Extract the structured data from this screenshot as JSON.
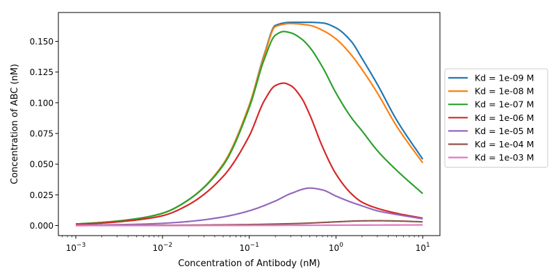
{
  "chart_data": {
    "type": "line",
    "xlabel": "Concentration of Antibody (nM)",
    "ylabel": "Concentration of ABC (nM)",
    "xscale": "log",
    "xlim": [
      0.00063,
      15.8
    ],
    "ylim": [
      -0.0082,
      0.1735
    ],
    "x_ticks": [
      0.001,
      0.01,
      0.1,
      1,
      10
    ],
    "x_tick_labels": [
      {
        "base": "10",
        "exp": "−3"
      },
      {
        "base": "10",
        "exp": "−2"
      },
      {
        "base": "10",
        "exp": "−1"
      },
      {
        "base": "10",
        "exp": "0"
      },
      {
        "base": "10",
        "exp": "1"
      }
    ],
    "y_ticks": [
      0.0,
      0.025,
      0.05,
      0.075,
      0.1,
      0.125,
      0.15
    ],
    "y_tick_labels": [
      "0.000",
      "0.025",
      "0.050",
      "0.075",
      "0.100",
      "0.125",
      "0.150"
    ],
    "grid": false,
    "legend_position": "outside right",
    "series": [
      {
        "name": "Kd = 1e-09 M",
        "color": "#1f77b4",
        "x": [
          0.001,
          0.002,
          0.005,
          0.01,
          0.02,
          0.05,
          0.1,
          0.15,
          0.2,
          0.3,
          0.5,
          0.7,
          1,
          1.5,
          2,
          3,
          5,
          10
        ],
        "y": [
          0.0012,
          0.0025,
          0.0055,
          0.01,
          0.021,
          0.05,
          0.098,
          0.14,
          0.163,
          0.1655,
          0.1655,
          0.165,
          0.161,
          0.15,
          0.136,
          0.115,
          0.086,
          0.054
        ]
      },
      {
        "name": "Kd = 1e-08 M",
        "color": "#ff7f0e",
        "x": [
          0.001,
          0.002,
          0.005,
          0.01,
          0.02,
          0.05,
          0.1,
          0.15,
          0.2,
          0.3,
          0.5,
          0.7,
          1,
          1.5,
          2,
          3,
          5,
          10
        ],
        "y": [
          0.0012,
          0.0025,
          0.0055,
          0.01,
          0.021,
          0.05,
          0.098,
          0.139,
          0.162,
          0.1645,
          0.163,
          0.159,
          0.152,
          0.139,
          0.127,
          0.108,
          0.081,
          0.051
        ]
      },
      {
        "name": "Kd = 1e-07 M",
        "color": "#2ca02c",
        "x": [
          0.001,
          0.002,
          0.005,
          0.01,
          0.02,
          0.05,
          0.1,
          0.15,
          0.2,
          0.25,
          0.3,
          0.4,
          0.5,
          0.7,
          1,
          1.5,
          2,
          3,
          5,
          10
        ],
        "y": [
          0.0012,
          0.0025,
          0.0055,
          0.01,
          0.021,
          0.049,
          0.096,
          0.136,
          0.155,
          0.158,
          0.157,
          0.152,
          0.145,
          0.129,
          0.108,
          0.088,
          0.077,
          0.061,
          0.045,
          0.026
        ]
      },
      {
        "name": "Kd = 1e-06 M",
        "color": "#d62728",
        "x": [
          0.001,
          0.002,
          0.005,
          0.01,
          0.02,
          0.05,
          0.1,
          0.15,
          0.2,
          0.25,
          0.3,
          0.4,
          0.5,
          0.7,
          1,
          1.5,
          2,
          3,
          5,
          10
        ],
        "y": [
          0.001,
          0.002,
          0.0045,
          0.008,
          0.017,
          0.04,
          0.073,
          0.102,
          0.114,
          0.116,
          0.114,
          0.104,
          0.09,
          0.064,
          0.042,
          0.026,
          0.019,
          0.014,
          0.01,
          0.006
        ]
      },
      {
        "name": "Kd = 1e-05 M",
        "color": "#9467bd",
        "x": [
          0.001,
          0.002,
          0.005,
          0.01,
          0.02,
          0.05,
          0.1,
          0.2,
          0.3,
          0.5,
          0.7,
          1,
          1.5,
          2,
          3,
          5,
          10
        ],
        "y": [
          0.0003,
          0.0005,
          0.001,
          0.0018,
          0.0033,
          0.007,
          0.012,
          0.02,
          0.026,
          0.0305,
          0.029,
          0.024,
          0.019,
          0.016,
          0.012,
          0.009,
          0.0055
        ]
      },
      {
        "name": "Kd = 1e-04 M",
        "color": "#8c564b",
        "x": [
          0.001,
          0.01,
          0.1,
          0.3,
          0.5,
          1,
          2,
          3,
          5,
          10
        ],
        "y": [
          0.0,
          0.0002,
          0.0008,
          0.0015,
          0.002,
          0.003,
          0.0038,
          0.0039,
          0.0037,
          0.003
        ]
      },
      {
        "name": "Kd = 1e-03 M",
        "color": "#e377c2",
        "x": [
          0.001,
          0.01,
          0.1,
          1,
          3,
          10
        ],
        "y": [
          0.0,
          0.0,
          0.0001,
          0.0003,
          0.0004,
          0.0005
        ]
      }
    ]
  }
}
